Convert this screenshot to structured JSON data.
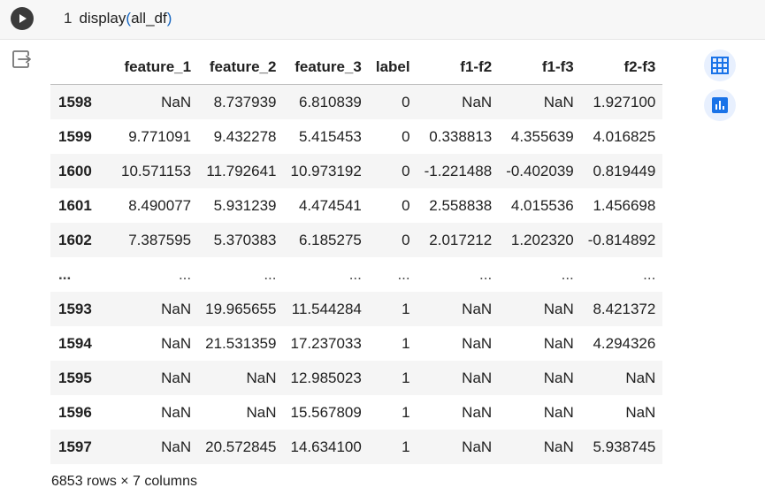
{
  "cell": {
    "line_number": "1",
    "code_fn": "display",
    "code_open": "(",
    "code_arg": "all_df",
    "code_close": ")"
  },
  "table": {
    "columns": [
      "feature_1",
      "feature_2",
      "feature_3",
      "label",
      "f1-f2",
      "f1-f3",
      "f2-f3"
    ],
    "rows": [
      {
        "index": "1598",
        "cells": [
          "NaN",
          "8.737939",
          "6.810839",
          "0",
          "NaN",
          "NaN",
          "1.927100"
        ]
      },
      {
        "index": "1599",
        "cells": [
          "9.771091",
          "9.432278",
          "5.415453",
          "0",
          "0.338813",
          "4.355639",
          "4.016825"
        ]
      },
      {
        "index": "1600",
        "cells": [
          "10.571153",
          "11.792641",
          "10.973192",
          "0",
          "-1.221488",
          "-0.402039",
          "0.819449"
        ]
      },
      {
        "index": "1601",
        "cells": [
          "8.490077",
          "5.931239",
          "4.474541",
          "0",
          "2.558838",
          "4.015536",
          "1.456698"
        ]
      },
      {
        "index": "1602",
        "cells": [
          "7.387595",
          "5.370383",
          "6.185275",
          "0",
          "2.017212",
          "1.202320",
          "-0.814892"
        ]
      },
      {
        "index": "...",
        "cells": [
          "...",
          "...",
          "...",
          "...",
          "...",
          "...",
          "..."
        ]
      },
      {
        "index": "1593",
        "cells": [
          "NaN",
          "19.965655",
          "11.544284",
          "1",
          "NaN",
          "NaN",
          "8.421372"
        ]
      },
      {
        "index": "1594",
        "cells": [
          "NaN",
          "21.531359",
          "17.237033",
          "1",
          "NaN",
          "NaN",
          "4.294326"
        ]
      },
      {
        "index": "1595",
        "cells": [
          "NaN",
          "NaN",
          "12.985023",
          "1",
          "NaN",
          "NaN",
          "NaN"
        ]
      },
      {
        "index": "1596",
        "cells": [
          "NaN",
          "NaN",
          "15.567809",
          "1",
          "NaN",
          "NaN",
          "NaN"
        ]
      },
      {
        "index": "1597",
        "cells": [
          "NaN",
          "20.572845",
          "14.634100",
          "1",
          "NaN",
          "NaN",
          "5.938745"
        ]
      }
    ]
  },
  "footer": {
    "shape_text": "6853 rows × 7 columns"
  },
  "icons": {
    "run": "play-icon",
    "output": "output-redirect-icon",
    "table_view": "table-grid-icon",
    "chart": "bar-chart-icon"
  },
  "colors": {
    "accent": "#1a73e8",
    "side_button_bg": "#e8f0fe"
  }
}
